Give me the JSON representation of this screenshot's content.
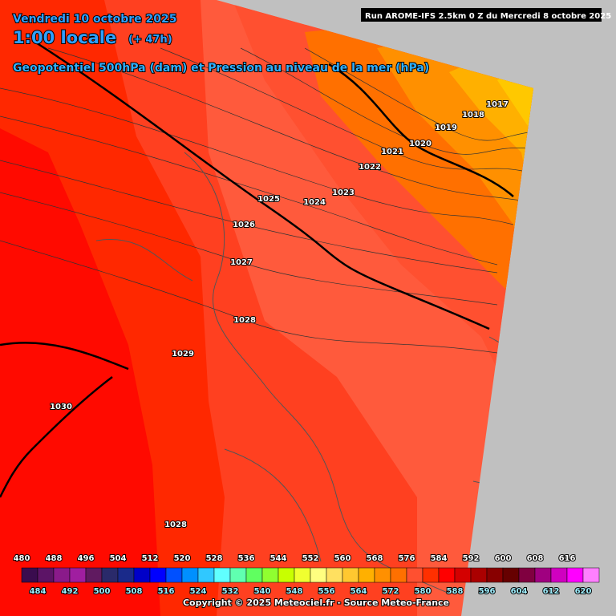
{
  "header": {
    "date": "Vendredi 10 octobre 2025",
    "time": "1:00 locale",
    "lead": "(+ 47h)",
    "run": "Run AROME-IFS 2.5km 0 Z du Mercredi 8 octobre 2025",
    "title": "Geopotentiel 500hPa (dam) et Pression au niveau de la mer (hPa)"
  },
  "isobar_labels": [
    "1017",
    "1018",
    "1019",
    "1020",
    "1021",
    "1022",
    "1023",
    "1024",
    "1025",
    "1026",
    "1027",
    "1028",
    "1029",
    "1030",
    "1028"
  ],
  "colorbar": {
    "values": [
      480,
      484,
      488,
      492,
      496,
      500,
      504,
      508,
      512,
      516,
      520,
      524,
      528,
      532,
      536,
      540,
      544,
      548,
      552,
      556,
      560,
      564,
      568,
      572,
      576,
      580,
      584,
      588,
      592,
      596,
      600,
      604,
      608,
      612,
      616,
      620
    ],
    "colors": [
      "#3a0c4e",
      "#5c1466",
      "#8a1a8a",
      "#a01ea0",
      "#601a60",
      "#2a2a6a",
      "#1a2a8a",
      "#0000c8",
      "#0000ff",
      "#0050ff",
      "#0090ff",
      "#30c8ff",
      "#60ffff",
      "#60ffb0",
      "#60ff60",
      "#90ff30",
      "#c8ff00",
      "#f0ff30",
      "#ffff80",
      "#ffe060",
      "#ffc830",
      "#ffb000",
      "#ff9000",
      "#ff7000",
      "#ff5030",
      "#ff3000",
      "#ff0000",
      "#d40000",
      "#aa0000",
      "#880000",
      "#660000",
      "#800040",
      "#a00080",
      "#d000c0",
      "#ff00ff",
      "#ff80ff"
    ]
  },
  "footer": "Copyright © 2025 Meteociel.fr - Source Meteo-France"
}
